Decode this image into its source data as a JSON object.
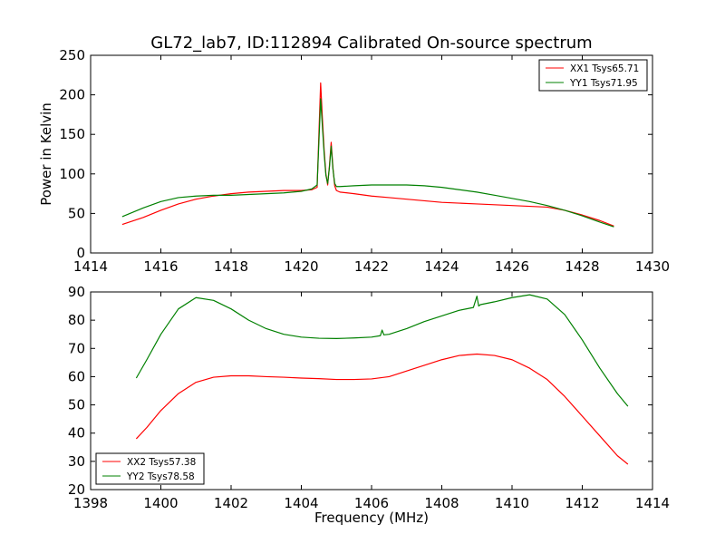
{
  "chart_data": [
    {
      "type": "line",
      "title": "GL72_lab7, ID:112894 Calibrated On-source spectrum",
      "xlabel": "",
      "ylabel": "Power in Kelvin",
      "xlim": [
        1414,
        1430
      ],
      "ylim": [
        0,
        250
      ],
      "xticks": [
        1414,
        1416,
        1418,
        1420,
        1422,
        1424,
        1426,
        1428,
        1430
      ],
      "yticks": [
        0,
        50,
        100,
        150,
        200,
        250
      ],
      "legend_position": "upper right",
      "grid": false,
      "series": [
        {
          "name": "XX1 Tsys65.71",
          "color": "#ff0000",
          "x": [
            1414.9,
            1415.5,
            1416.0,
            1416.5,
            1417.0,
            1417.5,
            1418.0,
            1418.5,
            1419.0,
            1419.5,
            1420.0,
            1420.3,
            1420.45,
            1420.5,
            1420.55,
            1420.6,
            1420.65,
            1420.7,
            1420.75,
            1420.8,
            1420.85,
            1420.9,
            1420.95,
            1421.0,
            1421.1,
            1421.5,
            1422.0,
            1422.5,
            1423.0,
            1423.5,
            1424.0,
            1424.5,
            1425.0,
            1425.5,
            1426.0,
            1426.5,
            1427.0,
            1427.5,
            1428.0,
            1428.5,
            1428.9
          ],
          "y": [
            36,
            45,
            54,
            62,
            68,
            72,
            75,
            77,
            78,
            79,
            79,
            80,
            83,
            150,
            215,
            170,
            130,
            100,
            86,
            110,
            140,
            108,
            85,
            79,
            77,
            75,
            72,
            70,
            68,
            66,
            64,
            63,
            62,
            61,
            60,
            59,
            58,
            54,
            48,
            41,
            34
          ]
        },
        {
          "name": "YY1 Tsys71.95",
          "color": "#008000",
          "x": [
            1414.9,
            1415.5,
            1416.0,
            1416.5,
            1417.0,
            1417.5,
            1418.0,
            1418.5,
            1419.0,
            1419.5,
            1420.0,
            1420.3,
            1420.45,
            1420.5,
            1420.55,
            1420.6,
            1420.65,
            1420.7,
            1420.75,
            1420.8,
            1420.85,
            1420.9,
            1420.95,
            1421.0,
            1421.1,
            1421.5,
            1422.0,
            1422.5,
            1423.0,
            1423.5,
            1424.0,
            1424.5,
            1425.0,
            1425.5,
            1426.0,
            1426.5,
            1427.0,
            1427.5,
            1428.0,
            1428.5,
            1428.9
          ],
          "y": [
            46,
            57,
            65,
            70,
            72,
            73,
            73,
            74,
            75,
            76,
            78,
            81,
            86,
            140,
            195,
            160,
            125,
            98,
            88,
            108,
            135,
            106,
            88,
            84,
            84,
            85,
            86,
            86,
            86,
            85,
            83,
            80,
            77,
            73,
            69,
            65,
            60,
            54,
            47,
            39,
            33
          ]
        }
      ]
    },
    {
      "type": "line",
      "title": "",
      "xlabel": "Frequency (MHz)",
      "ylabel": "",
      "xlim": [
        1398,
        1414
      ],
      "ylim": [
        20,
        90
      ],
      "xticks": [
        1398,
        1400,
        1402,
        1404,
        1406,
        1408,
        1410,
        1412,
        1414
      ],
      "yticks": [
        20,
        30,
        40,
        50,
        60,
        70,
        80,
        90
      ],
      "legend_position": "lower left",
      "grid": false,
      "series": [
        {
          "name": "XX2 Tsys57.38",
          "color": "#ff0000",
          "x": [
            1399.3,
            1399.6,
            1400.0,
            1400.5,
            1401.0,
            1401.5,
            1402.0,
            1402.5,
            1403.0,
            1403.5,
            1404.0,
            1404.5,
            1405.0,
            1405.5,
            1406.0,
            1406.5,
            1407.0,
            1407.5,
            1408.0,
            1408.5,
            1409.0,
            1409.5,
            1410.0,
            1410.5,
            1411.0,
            1411.5,
            1412.0,
            1412.5,
            1413.0,
            1413.3
          ],
          "y": [
            38,
            42,
            48,
            54,
            58,
            59.8,
            60.3,
            60.3,
            60.0,
            59.8,
            59.5,
            59.3,
            59.0,
            59.0,
            59.2,
            60.0,
            62.0,
            64.0,
            66.0,
            67.5,
            68.0,
            67.5,
            66.0,
            63.0,
            59.0,
            53.0,
            46.0,
            39.0,
            32.0,
            29.0
          ]
        },
        {
          "name": "YY2 Tsys78.58",
          "color": "#008000",
          "x": [
            1399.3,
            1399.6,
            1400.0,
            1400.5,
            1401.0,
            1401.5,
            1402.0,
            1402.5,
            1403.0,
            1403.5,
            1404.0,
            1404.5,
            1405.0,
            1405.5,
            1406.0,
            1406.25,
            1406.3,
            1406.35,
            1406.5,
            1407.0,
            1407.5,
            1408.0,
            1408.5,
            1408.9,
            1409.0,
            1409.05,
            1409.1,
            1409.5,
            1410.0,
            1410.5,
            1411.0,
            1411.5,
            1412.0,
            1412.5,
            1413.0,
            1413.3
          ],
          "y": [
            59.5,
            66.0,
            75.0,
            84.0,
            88.0,
            87.0,
            84.0,
            80.0,
            77.0,
            75.0,
            74.0,
            73.6,
            73.5,
            73.7,
            74.0,
            74.5,
            76.5,
            74.8,
            75.0,
            77.0,
            79.5,
            81.5,
            83.5,
            84.5,
            88.5,
            85.0,
            85.5,
            86.5,
            88.0,
            89.0,
            87.5,
            82.0,
            73.0,
            63.0,
            54.0,
            49.5
          ]
        }
      ]
    }
  ]
}
